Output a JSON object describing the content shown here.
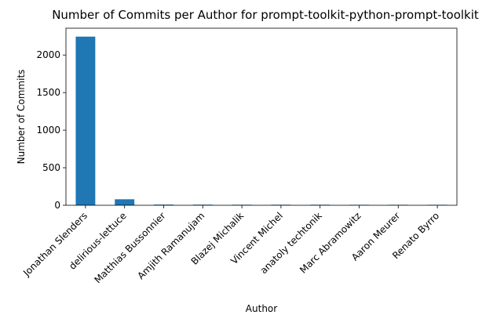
{
  "chart_data": {
    "type": "bar",
    "title": "Number of Commits per Author for prompt-toolkit-python-prompt-toolkit",
    "xlabel": "Author",
    "ylabel": "Number of Commits",
    "categories": [
      "Jonathan Slenders",
      "delirious-lettuce",
      "Matthias Bussonnier",
      "Amjith Ramanujam",
      "Blazej Michalik",
      "Vincent Michel",
      "anatoly techtonik",
      "Marc Abramowitz",
      "Aaron Meurer",
      "Renato Byrro"
    ],
    "values": [
      2245,
      80,
      9,
      8,
      7,
      7,
      7,
      6,
      6,
      6
    ],
    "ylim": [
      0,
      2357
    ],
    "yticks": [
      0,
      500,
      1000,
      1500,
      2000
    ],
    "grid": false,
    "bar_color": "#1f77b4"
  }
}
